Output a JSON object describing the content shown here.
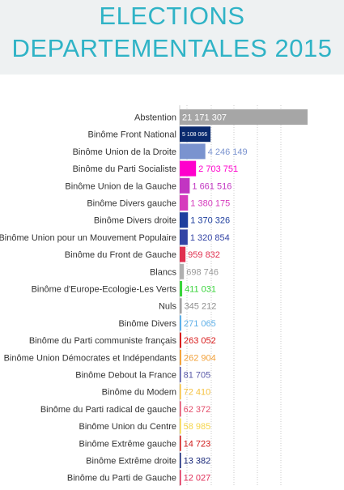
{
  "header": {
    "title_line1": "ELECTIONS",
    "title_line2": "DEPARTEMENTALES 2015"
  },
  "chart_data": {
    "type": "bar",
    "orientation": "horizontal",
    "title": "ELECTIONS DEPARTEMENTALES 2015",
    "xlim": [
      0,
      21171307
    ],
    "grid": true,
    "categories": [
      "Abstention",
      "Binôme Front National",
      "Binôme Union de la Droite",
      "Binôme du Parti Socialiste",
      "Binôme Union de la Gauche",
      "Binôme Divers gauche",
      "Binôme Divers droite",
      "Binôme Union pour un Mouvement Populaire",
      "Binôme du Front de Gauche",
      "Blancs",
      "Binôme d'Europe-Ecologie-Les Verts",
      "Nuls",
      "Binôme Divers",
      "Binôme du Parti communiste français",
      "Binôme Union Démocrates et Indépendants",
      "Binôme Debout la France",
      "Binôme du Modem",
      "Binôme du Parti radical de gauche",
      "Binôme Union du Centre",
      "Binôme Extrême gauche",
      "Binôme Extrême droite",
      "Binôme du Parti de Gauche"
    ],
    "values": [
      21171307,
      5108066,
      4246149,
      2703751,
      1661516,
      1380175,
      1370326,
      1320854,
      959832,
      698746,
      411031,
      345212,
      271065,
      263052,
      262904,
      81705,
      72410,
      62372,
      58985,
      14723,
      13382,
      12027
    ],
    "value_labels": [
      "21 171 307",
      "5 108 066",
      "4 246 149",
      "2 703 751",
      "1 661 516",
      "1 380 175",
      "1 370 326",
      "1 320 854",
      "959 832",
      "698 746",
      "411 031",
      "345 212",
      "271 065",
      "263 052",
      "262 904",
      "81 705",
      "72 410",
      "62 372",
      "58 985",
      "14 723",
      "13 382",
      "12 027"
    ],
    "colors": [
      "#a6a6a6",
      "#0a2a6e",
      "#7a93cf",
      "#ff00cc",
      "#c235c2",
      "#d63bbd",
      "#1f3f9e",
      "#3344a5",
      "#e0304f",
      "#b0b0b0",
      "#39d43b",
      "#a3a3a3",
      "#5fb0e8",
      "#d81919",
      "#f2a13a",
      "#5a5aa8",
      "#f5c242",
      "#e34d6a",
      "#f5d54a",
      "#d01c1c",
      "#1b2a7a",
      "#e0305a"
    ],
    "label_colors": [
      "#ffffff",
      "#ffffff",
      "#7a93cf",
      "#ff00cc",
      "#c235c2",
      "#d63bbd",
      "#1f3f9e",
      "#3344a5",
      "#e0304f",
      "#9a9a9a",
      "#39d43b",
      "#8f8f8f",
      "#5fb0e8",
      "#d81919",
      "#f2a13a",
      "#5a5aa8",
      "#f5c242",
      "#e34d6a",
      "#f5d54a",
      "#d01c1c",
      "#1b2a7a",
      "#e0305a"
    ],
    "label_inside_bar": [
      true,
      true,
      false,
      false,
      false,
      false,
      false,
      false,
      false,
      false,
      false,
      false,
      false,
      false,
      false,
      false,
      false,
      false,
      false,
      false,
      false,
      false
    ]
  }
}
